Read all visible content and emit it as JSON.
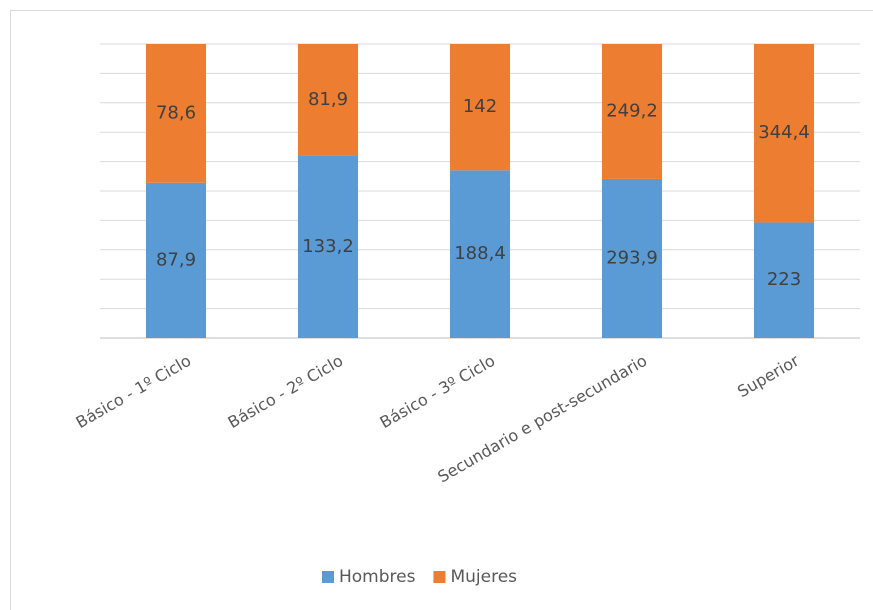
{
  "chart_data": {
    "type": "bar",
    "stacking": "percent",
    "categories": [
      "Básico - 1º Ciclo",
      "Básico - 2º Ciclo",
      "Básico - 3º Ciclo",
      "Secundario e post-secundario",
      "Superior"
    ],
    "series": [
      {
        "name": "Hombres",
        "color": "#5b9bd5",
        "values": [
          87.9,
          133.2,
          188.4,
          293.9,
          223
        ],
        "value_labels": [
          "87,9",
          "133,2",
          "188,4",
          "293,9",
          "223"
        ]
      },
      {
        "name": "Mujeres",
        "color": "#ed7d31",
        "values": [
          78.6,
          81.9,
          142,
          249.2,
          344.4
        ],
        "value_labels": [
          "78,6",
          "81,9",
          "142",
          "249,2",
          "344,4"
        ]
      }
    ],
    "ylim": [
      0,
      100
    ],
    "yticks": [
      0,
      10,
      20,
      30,
      40,
      50,
      60,
      70,
      80,
      90,
      100
    ],
    "show_ytick_labels": false,
    "grid": true,
    "legend": "bottom"
  }
}
